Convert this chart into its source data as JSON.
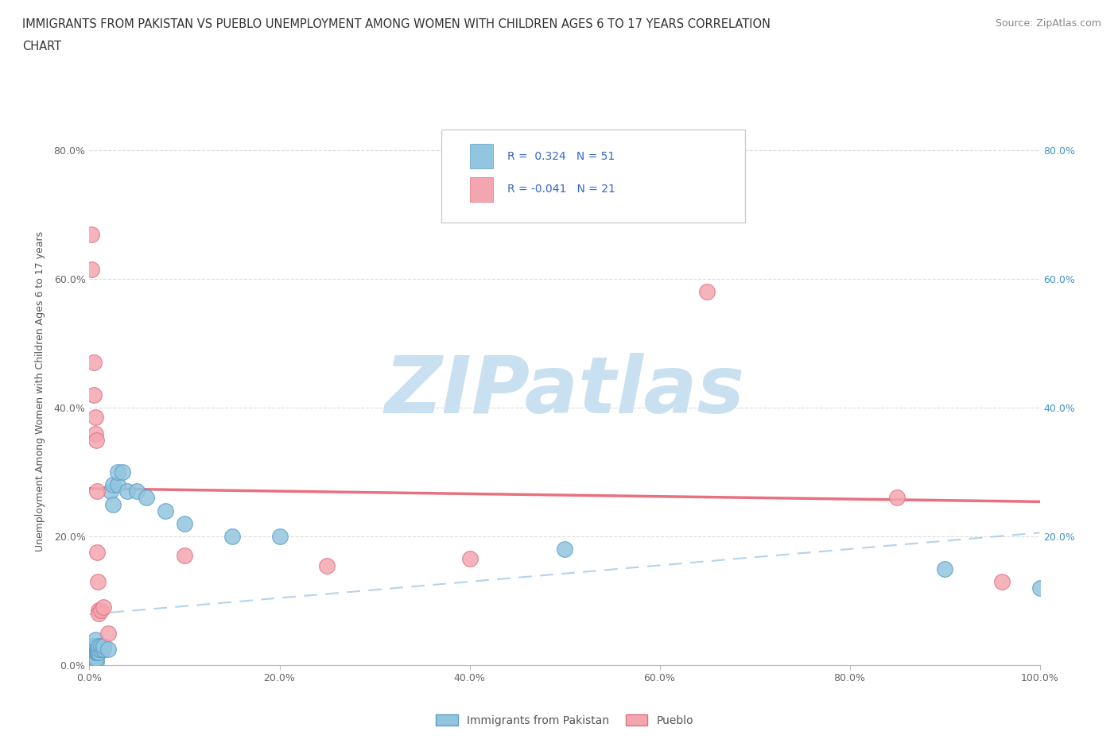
{
  "title_line1": "IMMIGRANTS FROM PAKISTAN VS PUEBLO UNEMPLOYMENT AMONG WOMEN WITH CHILDREN AGES 6 TO 17 YEARS CORRELATION",
  "title_line2": "CHART",
  "source": "Source: ZipAtlas.com",
  "ylabel": "Unemployment Among Women with Children Ages 6 to 17 years",
  "xlim": [
    0.0,
    1.0
  ],
  "ylim": [
    0.0,
    0.85
  ],
  "xticks": [
    0.0,
    0.2,
    0.4,
    0.6,
    0.8,
    1.0
  ],
  "xticklabels": [
    "0.0%",
    "20.0%",
    "40.0%",
    "60.0%",
    "80.0%",
    "100.0%"
  ],
  "yticks": [
    0.0,
    0.2,
    0.4,
    0.6,
    0.8
  ],
  "yticklabels": [
    "0.0%",
    "20.0%",
    "40.0%",
    "60.0%",
    "80.0%"
  ],
  "right_yticklabels": [
    "20.0%",
    "40.0%",
    "60.0%",
    "80.0%"
  ],
  "r1": 0.324,
  "r2": -0.041,
  "n1": 51,
  "n2": 21,
  "color_blue": "#92C5DE",
  "color_blue_border": "#5B9EC9",
  "color_pink": "#F4A6B0",
  "color_pink_border": "#E07080",
  "color_trend_blue": "#4A7FC1",
  "color_trend_pink": "#E8707F",
  "watermark": "ZIPatlas",
  "watermark_color": "#C8E0F0",
  "blue_scatter": [
    [
      0.002,
      0.005
    ],
    [
      0.002,
      0.01
    ],
    [
      0.002,
      0.02
    ],
    [
      0.002,
      0.03
    ],
    [
      0.003,
      0.005
    ],
    [
      0.003,
      0.01
    ],
    [
      0.003,
      0.02
    ],
    [
      0.003,
      0.03
    ],
    [
      0.004,
      0.005
    ],
    [
      0.004,
      0.01
    ],
    [
      0.004,
      0.015
    ],
    [
      0.004,
      0.02
    ],
    [
      0.005,
      0.005
    ],
    [
      0.005,
      0.01
    ],
    [
      0.005,
      0.02
    ],
    [
      0.005,
      0.03
    ],
    [
      0.006,
      0.01
    ],
    [
      0.006,
      0.02
    ],
    [
      0.006,
      0.03
    ],
    [
      0.006,
      0.04
    ],
    [
      0.007,
      0.005
    ],
    [
      0.007,
      0.01
    ],
    [
      0.007,
      0.02
    ],
    [
      0.008,
      0.02
    ],
    [
      0.008,
      0.025
    ],
    [
      0.009,
      0.02
    ],
    [
      0.009,
      0.025
    ],
    [
      0.01,
      0.02
    ],
    [
      0.01,
      0.025
    ],
    [
      0.01,
      0.03
    ],
    [
      0.012,
      0.025
    ],
    [
      0.012,
      0.03
    ],
    [
      0.015,
      0.025
    ],
    [
      0.015,
      0.03
    ],
    [
      0.02,
      0.025
    ],
    [
      0.022,
      0.27
    ],
    [
      0.025,
      0.25
    ],
    [
      0.025,
      0.28
    ],
    [
      0.03,
      0.28
    ],
    [
      0.03,
      0.3
    ],
    [
      0.035,
      0.3
    ],
    [
      0.04,
      0.27
    ],
    [
      0.05,
      0.27
    ],
    [
      0.06,
      0.26
    ],
    [
      0.08,
      0.24
    ],
    [
      0.1,
      0.22
    ],
    [
      0.15,
      0.2
    ],
    [
      0.2,
      0.2
    ],
    [
      0.5,
      0.18
    ],
    [
      0.9,
      0.15
    ],
    [
      1.0,
      0.12
    ]
  ],
  "pink_scatter": [
    [
      0.002,
      0.67
    ],
    [
      0.002,
      0.615
    ],
    [
      0.005,
      0.47
    ],
    [
      0.005,
      0.42
    ],
    [
      0.006,
      0.385
    ],
    [
      0.006,
      0.36
    ],
    [
      0.007,
      0.35
    ],
    [
      0.008,
      0.27
    ],
    [
      0.008,
      0.175
    ],
    [
      0.009,
      0.13
    ],
    [
      0.01,
      0.085
    ],
    [
      0.01,
      0.08
    ],
    [
      0.012,
      0.085
    ],
    [
      0.015,
      0.09
    ],
    [
      0.02,
      0.05
    ],
    [
      0.1,
      0.17
    ],
    [
      0.25,
      0.155
    ],
    [
      0.4,
      0.165
    ],
    [
      0.65,
      0.58
    ],
    [
      0.85,
      0.26
    ],
    [
      0.96,
      0.13
    ]
  ],
  "background_color": "#FFFFFF",
  "grid_color": "#DCDCDC"
}
